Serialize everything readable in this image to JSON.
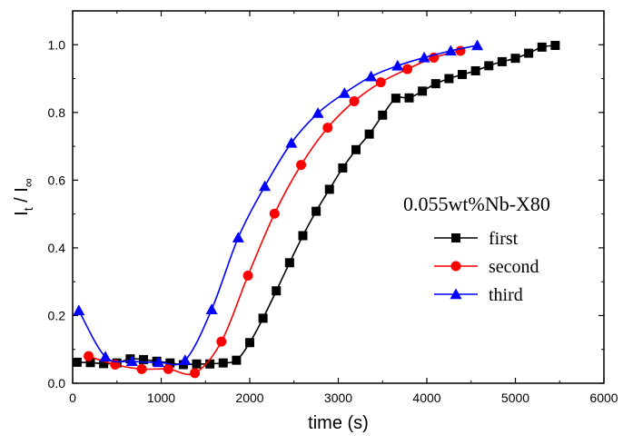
{
  "chart_data": {
    "type": "line",
    "xlabel": "time (s)",
    "ylabel": {
      "base": "I",
      "num_sub": "t",
      "sep": " / ",
      "den_sub": "∞"
    },
    "annotation": "0.055wt%Nb-X80",
    "xlim": [
      0,
      6000
    ],
    "ylim": [
      0,
      1.1
    ],
    "x_ticks": [
      0,
      1000,
      2000,
      3000,
      4000,
      5000,
      6000
    ],
    "y_ticks": [
      0.0,
      0.2,
      0.4,
      0.6,
      0.8,
      1.0
    ],
    "y_tick_labels": [
      "0.0",
      "0.2",
      "0.4",
      "0.6",
      "0.8",
      "1.0"
    ],
    "grid": false,
    "legend_position": "right",
    "series": [
      {
        "name": "first",
        "color": "#000000",
        "marker": "square",
        "x": [
          50,
          200,
          350,
          500,
          650,
          800,
          950,
          1100,
          1250,
          1400,
          1550,
          1700,
          1850,
          2000,
          2150,
          2300,
          2450,
          2600,
          2750,
          2900,
          3050,
          3200,
          3350,
          3500,
          3650,
          3800,
          3950,
          4100,
          4250,
          4400,
          4550,
          4700,
          4850,
          5000,
          5150,
          5300,
          5450
        ],
        "y": [
          0.062,
          0.061,
          0.058,
          0.06,
          0.072,
          0.07,
          0.065,
          0.06,
          0.055,
          0.057,
          0.057,
          0.06,
          0.068,
          0.12,
          0.192,
          0.273,
          0.356,
          0.436,
          0.508,
          0.573,
          0.636,
          0.69,
          0.736,
          0.792,
          0.842,
          0.843,
          0.863,
          0.885,
          0.9,
          0.912,
          0.923,
          0.938,
          0.95,
          0.96,
          0.975,
          0.993,
          0.998
        ]
      },
      {
        "name": "second",
        "color": "#ff0000",
        "marker": "circle",
        "x": [
          180,
          480,
          780,
          1080,
          1380,
          1680,
          1980,
          2280,
          2580,
          2880,
          3180,
          3480,
          3780,
          4080,
          4380
        ],
        "y": [
          0.08,
          0.055,
          0.042,
          0.042,
          0.03,
          0.123,
          0.318,
          0.501,
          0.645,
          0.755,
          0.833,
          0.889,
          0.928,
          0.962,
          0.982
        ]
      },
      {
        "name": "third",
        "color": "#0000ff",
        "marker": "triangle",
        "x": [
          70,
          370,
          670,
          970,
          1270,
          1570,
          1870,
          2170,
          2470,
          2770,
          3070,
          3370,
          3670,
          3970,
          4270,
          4570
        ],
        "y": [
          0.215,
          0.078,
          0.065,
          0.062,
          0.068,
          0.218,
          0.43,
          0.582,
          0.71,
          0.798,
          0.857,
          0.906,
          0.938,
          0.962,
          0.982,
          0.998
        ]
      }
    ]
  }
}
